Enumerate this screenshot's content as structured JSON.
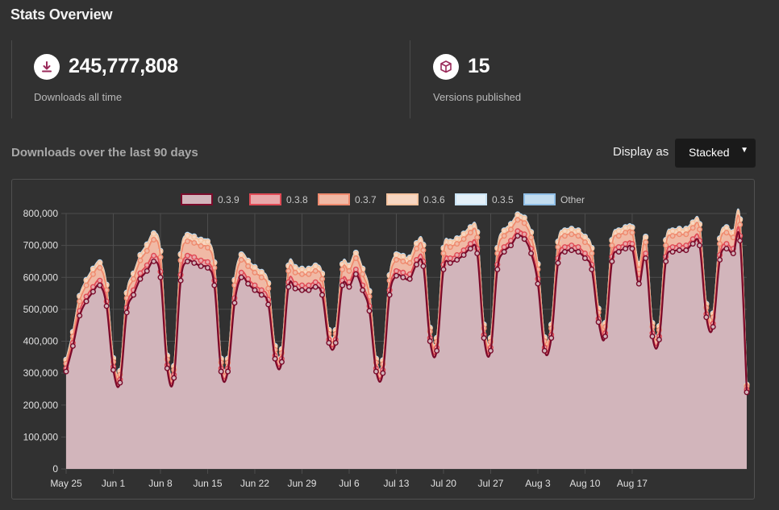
{
  "page": {
    "title": "Stats Overview"
  },
  "stats": {
    "downloads": {
      "value": "245,777,808",
      "label": "Downloads all time",
      "icon": "download-icon"
    },
    "versions": {
      "value": "15",
      "label": "Versions published",
      "icon": "box-icon"
    }
  },
  "chart_section": {
    "title": "Downloads over the last 90 days",
    "display_label": "Display as",
    "display_value": "Stacked"
  },
  "chart_data": {
    "type": "area",
    "stacked": true,
    "title": "",
    "xlabel": "",
    "ylabel": "",
    "ylim": [
      0,
      800000
    ],
    "yticks": [
      0,
      100000,
      200000,
      300000,
      400000,
      500000,
      600000,
      700000,
      800000
    ],
    "ytick_labels": [
      "0",
      "100,000",
      "200,000",
      "300,000",
      "400,000",
      "500,000",
      "600,000",
      "700,000",
      "800,000"
    ],
    "x_tick_labels": [
      "May 25",
      "Jun 1",
      "Jun 8",
      "Jun 15",
      "Jun 22",
      "Jun 29",
      "Jul 6",
      "Jul 13",
      "Jul 20",
      "Jul 27",
      "Aug 3",
      "Aug 10",
      "Aug 17"
    ],
    "grid": true,
    "legend_position": "top",
    "x_start": "May 25",
    "series": [
      {
        "name": "0.3.9",
        "color": "#7a0a2a",
        "fill": "#d2b5bb",
        "values": [
          305000,
          385000,
          480000,
          525000,
          555000,
          575000,
          510000,
          310000,
          270000,
          490000,
          545000,
          595000,
          620000,
          650000,
          600000,
          315000,
          285000,
          590000,
          650000,
          645000,
          635000,
          630000,
          575000,
          305000,
          305000,
          520000,
          600000,
          580000,
          560000,
          545000,
          515000,
          345000,
          335000,
          570000,
          565000,
          560000,
          560000,
          570000,
          545000,
          395000,
          395000,
          575000,
          570000,
          610000,
          560000,
          495000,
          305000,
          300000,
          545000,
          605000,
          600000,
          595000,
          640000,
          635000,
          400000,
          370000,
          625000,
          645000,
          655000,
          670000,
          690000,
          675000,
          410000,
          370000,
          625000,
          680000,
          700000,
          730000,
          720000,
          675000,
          580000,
          370000,
          410000,
          645000,
          680000,
          685000,
          680000,
          660000,
          625000,
          460000,
          415000,
          650000,
          680000,
          690000,
          690000,
          580000,
          660000,
          415000,
          405000,
          650000,
          680000,
          685000,
          685000,
          705000,
          700000,
          475000,
          445000,
          655000,
          690000,
          675000,
          715000,
          240000
        ]
      },
      {
        "name": "0.3.8",
        "color": "#e04a55",
        "fill": "#e8a8aa",
        "values": [
          10000,
          10000,
          15000,
          15000,
          15000,
          15000,
          15000,
          10000,
          10000,
          15000,
          15000,
          18000,
          18000,
          18000,
          18000,
          10000,
          10000,
          18000,
          18000,
          18000,
          18000,
          18000,
          15000,
          10000,
          10000,
          15000,
          15000,
          15000,
          15000,
          15000,
          15000,
          10000,
          10000,
          15000,
          15000,
          15000,
          15000,
          15000,
          15000,
          10000,
          10000,
          15000,
          15000,
          15000,
          15000,
          15000,
          10000,
          10000,
          15000,
          15000,
          15000,
          15000,
          15000,
          15000,
          10000,
          10000,
          15000,
          15000,
          15000,
          15000,
          15000,
          15000,
          10000,
          10000,
          15000,
          15000,
          15000,
          15000,
          15000,
          15000,
          15000,
          10000,
          10000,
          15000,
          15000,
          15000,
          15000,
          15000,
          15000,
          10000,
          10000,
          15000,
          15000,
          15000,
          15000,
          15000,
          15000,
          10000,
          10000,
          15000,
          15000,
          15000,
          15000,
          15000,
          15000,
          10000,
          10000,
          15000,
          15000,
          15000,
          15000,
          8000
        ]
      },
      {
        "name": "0.3.7",
        "color": "#ef8a6e",
        "fill": "#f0b9a5",
        "values": [
          15000,
          20000,
          30000,
          35000,
          40000,
          40000,
          35000,
          15000,
          15000,
          30000,
          35000,
          40000,
          45000,
          50000,
          45000,
          18000,
          15000,
          45000,
          45000,
          45000,
          45000,
          45000,
          40000,
          18000,
          18000,
          40000,
          40000,
          40000,
          40000,
          40000,
          35000,
          18000,
          18000,
          35000,
          35000,
          35000,
          35000,
          35000,
          35000,
          18000,
          18000,
          35000,
          35000,
          35000,
          35000,
          30000,
          18000,
          18000,
          30000,
          35000,
          35000,
          35000,
          35000,
          35000,
          20000,
          18000,
          35000,
          35000,
          35000,
          35000,
          35000,
          35000,
          20000,
          18000,
          35000,
          35000,
          35000,
          35000,
          35000,
          35000,
          30000,
          20000,
          20000,
          35000,
          35000,
          35000,
          35000,
          35000,
          35000,
          20000,
          20000,
          35000,
          35000,
          35000,
          35000,
          30000,
          35000,
          20000,
          20000,
          35000,
          35000,
          35000,
          35000,
          35000,
          35000,
          20000,
          20000,
          35000,
          35000,
          35000,
          35000,
          10000
        ]
      },
      {
        "name": "0.3.6",
        "color": "#f6c4a0",
        "fill": "#f7d7c2",
        "values": [
          10000,
          12000,
          15000,
          15000,
          15000,
          15000,
          15000,
          10000,
          10000,
          15000,
          15000,
          15000,
          18000,
          18000,
          18000,
          10000,
          10000,
          18000,
          18000,
          18000,
          18000,
          18000,
          15000,
          10000,
          10000,
          15000,
          15000,
          15000,
          15000,
          15000,
          15000,
          10000,
          10000,
          15000,
          15000,
          15000,
          15000,
          15000,
          15000,
          10000,
          10000,
          15000,
          15000,
          15000,
          15000,
          15000,
          10000,
          10000,
          15000,
          15000,
          15000,
          15000,
          15000,
          15000,
          10000,
          10000,
          15000,
          15000,
          15000,
          15000,
          15000,
          15000,
          10000,
          10000,
          15000,
          15000,
          15000,
          15000,
          15000,
          15000,
          15000,
          10000,
          10000,
          15000,
          15000,
          15000,
          15000,
          15000,
          15000,
          10000,
          10000,
          15000,
          15000,
          15000,
          15000,
          15000,
          15000,
          10000,
          10000,
          15000,
          15000,
          15000,
          15000,
          15000,
          15000,
          10000,
          10000,
          15000,
          15000,
          15000,
          15000,
          5000
        ]
      },
      {
        "name": "0.3.5",
        "color": "#c9e3f5",
        "fill": "#e4f0f8",
        "values": [
          2000,
          2000,
          2000,
          2000,
          2000,
          2000,
          2000,
          2000,
          2000,
          2000,
          2000,
          2000,
          2000,
          2000,
          2000,
          2000,
          2000,
          2000,
          2000,
          2000,
          2000,
          2000,
          2000,
          2000,
          2000,
          2000,
          2000,
          2000,
          2000,
          2000,
          2000,
          2000,
          2000,
          2000,
          2000,
          2000,
          2000,
          2000,
          2000,
          2000,
          2000,
          2000,
          2000,
          2000,
          2000,
          2000,
          2000,
          2000,
          2000,
          2000,
          2000,
          2000,
          2000,
          2000,
          2000,
          2000,
          2000,
          2000,
          2000,
          2000,
          2000,
          2000,
          2000,
          2000,
          2000,
          2000,
          2000,
          2000,
          2000,
          2000,
          2000,
          2000,
          2000,
          2000,
          2000,
          2000,
          2000,
          2000,
          2000,
          2000,
          2000,
          2000,
          2000,
          2000,
          2000,
          2000,
          2000,
          2000,
          2000,
          2000,
          2000,
          2000,
          2000,
          2000,
          2000,
          2000,
          2000,
          2000,
          2000,
          2000,
          2000,
          1000
        ]
      },
      {
        "name": "Other",
        "color": "#8fbee6",
        "fill": "#c2dcef",
        "values": [
          1000,
          1000,
          1000,
          1000,
          1000,
          1000,
          1000,
          1000,
          1000,
          1000,
          1000,
          1000,
          1000,
          1000,
          1000,
          1000,
          1000,
          1000,
          1000,
          1000,
          1000,
          1000,
          1000,
          1000,
          1000,
          1000,
          1000,
          1000,
          1000,
          1000,
          1000,
          1000,
          1000,
          1000,
          1000,
          1000,
          1000,
          1000,
          1000,
          1000,
          1000,
          1000,
          1000,
          1000,
          1000,
          1000,
          1000,
          1000,
          1000,
          1000,
          1000,
          1000,
          1000,
          1000,
          1000,
          1000,
          1000,
          1000,
          1000,
          1000,
          1000,
          1000,
          1000,
          1000,
          1000,
          1000,
          1000,
          1000,
          1000,
          1000,
          1000,
          1000,
          1000,
          1000,
          1000,
          1000,
          1000,
          1000,
          1000,
          1000,
          1000,
          1000,
          1000,
          1000,
          1000,
          1000,
          1000,
          1000,
          1000,
          1000,
          1000,
          1000,
          1000,
          1000,
          1000,
          1000,
          1000,
          1000,
          1000,
          1000,
          1000,
          1000
        ]
      }
    ]
  }
}
